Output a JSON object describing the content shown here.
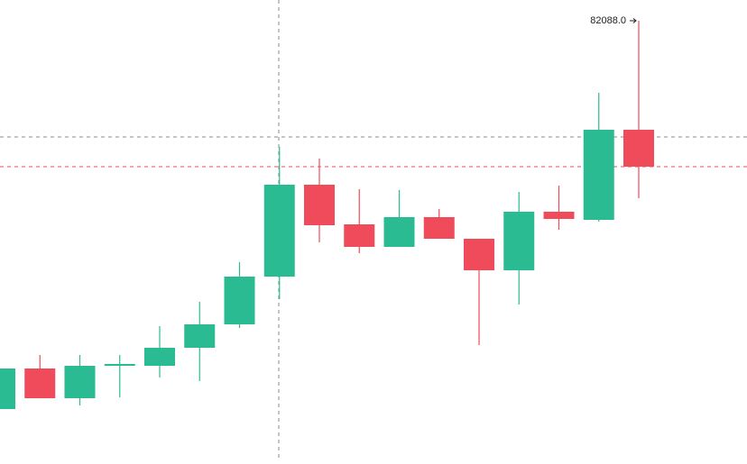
{
  "chart_data": {
    "type": "candlestick",
    "categories": [
      null,
      null,
      null,
      null,
      null,
      null,
      null,
      null,
      null,
      null,
      null,
      null,
      null,
      null,
      null,
      null,
      null
    ],
    "open": [
      71313,
      72438,
      71613,
      72513,
      72513,
      73013,
      73663,
      74988,
      77538,
      76438,
      75813,
      76638,
      76038,
      75163,
      76788,
      76563,
      79063
    ],
    "high": [
      72438,
      72813,
      72813,
      72813,
      73613,
      74288,
      75388,
      78588,
      78263,
      77413,
      77388,
      76863,
      76038,
      77338,
      77513,
      80088,
      82088
    ],
    "low": [
      71313,
      71613,
      71413,
      71638,
      72188,
      72088,
      73563,
      74363,
      75938,
      75638,
      75813,
      76038,
      73088,
      74213,
      76288,
      76513,
      77163
    ],
    "close": [
      72438,
      71613,
      72513,
      72563,
      73013,
      73663,
      74988,
      77538,
      76413,
      75813,
      76638,
      76038,
      75163,
      76788,
      76588,
      79063,
      78038
    ],
    "up_color": "#2bbb92",
    "down_color": "#ef4b5b",
    "ylim": [
      69913,
      82663
    ],
    "max_label": {
      "value": 82088,
      "label": "82088.0"
    }
  }
}
